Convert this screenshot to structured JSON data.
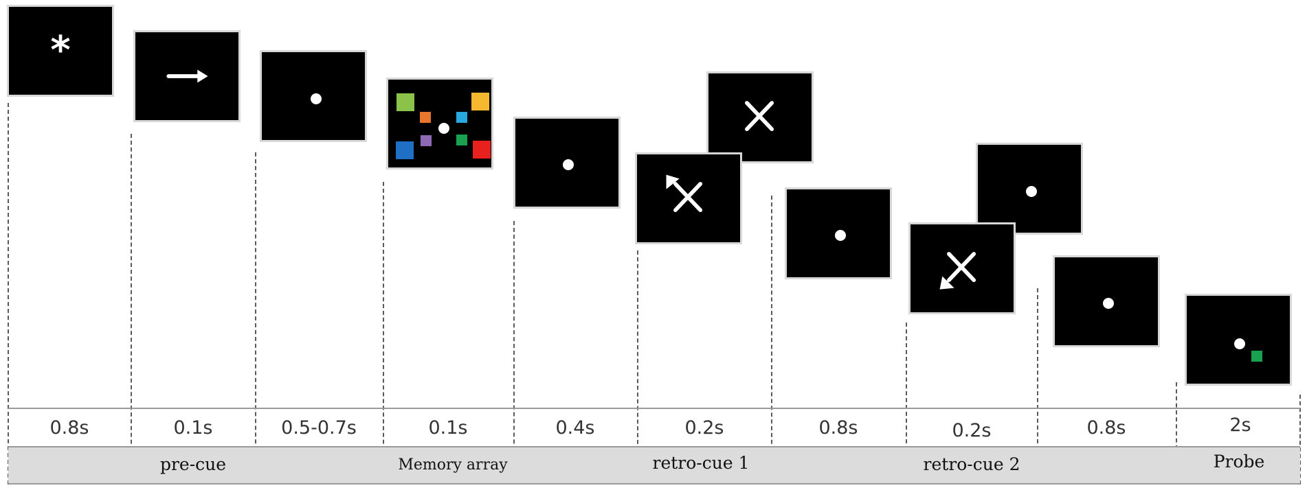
{
  "timeline": [
    {
      "duration": "0.8s",
      "phase": "",
      "screen": "asterisk"
    },
    {
      "duration": "0.1s",
      "phase": "pre-cue",
      "screen": "arrow-right"
    },
    {
      "duration": "0.5-0.7s",
      "phase": "",
      "screen": "fixation"
    },
    {
      "duration": "0.1s",
      "phase": "Memory array",
      "screen": "memory-array"
    },
    {
      "duration": "0.4s",
      "phase": "",
      "screen": "fixation"
    },
    {
      "duration": "0.2s",
      "phase": "retro-cue 1",
      "screen": "retro-cue-1"
    },
    {
      "duration": "0.8s",
      "phase": "",
      "screen": "fixation"
    },
    {
      "duration": "0.2s",
      "phase": "retro-cue 2",
      "screen": "retro-cue-2"
    },
    {
      "duration": "0.8s",
      "phase": "",
      "screen": "fixation"
    },
    {
      "duration": "2s",
      "phase": "Probe",
      "screen": "probe"
    }
  ],
  "glyphs": {
    "asterisk": "*"
  },
  "colors": {
    "screen_bg": "#000000",
    "screen_border": "#d8d8d8",
    "stimulus_white": "#ffffff",
    "band": "#dcdcdc",
    "memory_items": [
      "#8bc34a",
      "#e8772e",
      "#f5b82e",
      "#29a8e0",
      "#1f6fc4",
      "#8e6ab5",
      "#1aa150",
      "#e8201e"
    ],
    "probe_item": "#1aa150"
  }
}
